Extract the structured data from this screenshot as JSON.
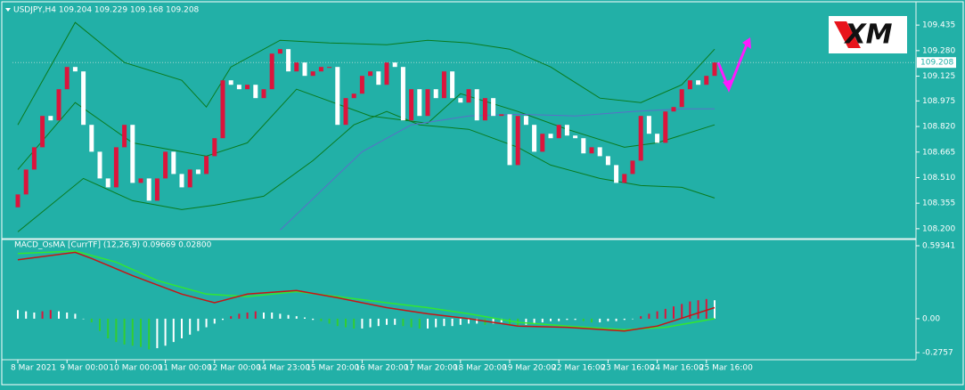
{
  "chart_data": {
    "type": "candlestick",
    "title": "USDJPY,H4  109.204 109.229 109.168 109.208",
    "logo": "XM",
    "ylim": [
      108.14,
      109.56
    ],
    "yticks": [
      109.435,
      {
        "value": 109.28,
        "label": "109.280"
      },
      109.125,
      108.975,
      {
        "value": 108.82,
        "label": "108.820"
      },
      108.665,
      {
        "value": 108.51,
        "label": "108.510"
      },
      108.355,
      {
        "value": 108.2,
        "label": "108.200"
      }
    ],
    "current_price": 109.208,
    "up_color": "#dc143c",
    "down_color": "#ffffff",
    "xticks": [
      {
        "value": 0,
        "label": "8 Mar 2021"
      },
      {
        "value": 6,
        "label": "9 Mar 00:00"
      },
      {
        "value": 12,
        "label": "10 Mar 00:00"
      },
      {
        "value": 18,
        "label": "11 Mar 00:00"
      },
      {
        "value": 24,
        "label": "12 Mar 00:00"
      },
      {
        "value": 30,
        "label": "14 Mar 23:00"
      },
      {
        "value": 36,
        "label": "15 Mar 20:00"
      },
      {
        "value": 42,
        "label": "16 Mar 20:00"
      },
      {
        "value": 48,
        "label": "17 Mar 20:00"
      },
      {
        "value": 54,
        "label": "18 Mar 20:00"
      },
      {
        "value": 60,
        "label": "19 Mar 20:00"
      },
      {
        "value": 66,
        "label": "22 Mar 16:00"
      },
      {
        "value": 72,
        "label": "23 Mar 16:00"
      },
      {
        "value": 78,
        "label": "24 Mar 16:00"
      },
      {
        "value": 84,
        "label": "25 Mar 16:00"
      }
    ],
    "candles": {
      "open": [
        108.33,
        108.408,
        108.559,
        108.694,
        108.884,
        108.857,
        109.046,
        109.181,
        109.154,
        108.83,
        108.667,
        108.505,
        108.451,
        108.694,
        108.83,
        108.478,
        108.505,
        108.37,
        108.505,
        108.667,
        108.532,
        108.451,
        108.559,
        108.532,
        108.64,
        108.749,
        109.1,
        109.073,
        109.046,
        109.073,
        108.992,
        109.046,
        109.262,
        109.289,
        109.154,
        109.208,
        109.127,
        109.154,
        109.181,
        109.181,
        108.83,
        108.992,
        109.019,
        109.127,
        109.154,
        109.073,
        109.208,
        109.181,
        108.857,
        109.046,
        108.884,
        109.046,
        108.992,
        109.154,
        108.992,
        108.965,
        109.046,
        108.857,
        108.992,
        108.884,
        108.894,
        108.586,
        108.884,
        108.83,
        108.667,
        108.776,
        108.749,
        108.83,
        108.765,
        108.749,
        108.657,
        108.694,
        108.64,
        108.586,
        108.478,
        108.532,
        108.613,
        108.884,
        108.776,
        108.721,
        108.911,
        108.938,
        109.046,
        109.1,
        109.073,
        109.127
      ],
      "close": [
        108.408,
        108.559,
        108.694,
        108.884,
        108.857,
        109.046,
        109.181,
        109.154,
        108.83,
        108.667,
        108.505,
        108.451,
        108.694,
        108.83,
        108.478,
        108.505,
        108.37,
        108.505,
        108.667,
        108.532,
        108.451,
        108.559,
        108.532,
        108.64,
        108.749,
        109.1,
        109.073,
        109.046,
        109.073,
        108.992,
        109.046,
        109.262,
        109.289,
        109.154,
        109.208,
        109.127,
        109.154,
        109.181,
        109.181,
        108.83,
        108.992,
        109.019,
        109.127,
        109.154,
        109.073,
        109.208,
        109.181,
        108.857,
        109.046,
        108.884,
        109.046,
        108.992,
        109.154,
        108.992,
        108.965,
        109.046,
        108.857,
        108.992,
        108.884,
        108.894,
        108.586,
        108.884,
        108.83,
        108.667,
        108.776,
        108.749,
        108.83,
        108.765,
        108.749,
        108.657,
        108.694,
        108.64,
        108.586,
        108.478,
        108.532,
        108.613,
        108.884,
        108.776,
        108.721,
        108.911,
        108.938,
        109.046,
        109.1,
        109.073,
        109.127,
        109.208
      ]
    },
    "indicators": [
      {
        "color": "#0a7a1e",
        "index": [
          0,
          7,
          13,
          20,
          23,
          26,
          32,
          38,
          45,
          50,
          55,
          60,
          65,
          71,
          76,
          81,
          85
        ],
        "values": [
          108.83,
          109.451,
          109.208,
          109.1,
          108.938,
          109.181,
          109.343,
          109.327,
          109.316,
          109.343,
          109.327,
          109.289,
          109.181,
          108.992,
          108.965,
          109.073,
          109.289
        ]
      },
      {
        "color": "#0a7a1e",
        "index": [
          0,
          7,
          14,
          23,
          28,
          34,
          43,
          50,
          54,
          61,
          67,
          74,
          78,
          85
        ],
        "values": [
          108.559,
          108.965,
          108.721,
          108.64,
          108.721,
          109.046,
          108.884,
          108.84,
          109.019,
          108.911,
          108.803,
          108.694,
          108.721,
          108.83
        ]
      },
      {
        "color": "#0a7a1e",
        "index": [
          0,
          8,
          14,
          20,
          24,
          30,
          36,
          41,
          45,
          49,
          55,
          61,
          65,
          71,
          76,
          81,
          85
        ],
        "values": [
          108.181,
          108.505,
          108.37,
          108.316,
          108.343,
          108.397,
          108.613,
          108.83,
          108.911,
          108.83,
          108.803,
          108.694,
          108.586,
          108.505,
          108.462,
          108.451,
          108.386
        ]
      },
      {
        "color": "#5a6fc8",
        "index": [
          32,
          42,
          48,
          55,
          61,
          68,
          75,
          81,
          85
        ],
        "values": [
          108.192,
          108.667,
          108.83,
          108.884,
          108.894,
          108.884,
          108.911,
          108.927,
          108.927
        ]
      }
    ],
    "macd": {
      "title": "MACD_OsMA [CurrTF] (12,26,9) 0.09669 0.02800",
      "ylim": [
        -0.334,
        0.637
      ],
      "yticks": [
        0.59341,
        {
          "value": 0,
          "label": "0.00"
        },
        -0.2757
      ],
      "grow_up_color": "#dc143c",
      "grow_down_color": "#32cd32",
      "shrink_color": "#ffffff",
      "histogram": [
        0.07,
        0.06,
        0.05,
        0.06,
        0.07,
        0.06,
        0.05,
        0.04,
        0.0,
        -0.03,
        -0.1,
        -0.16,
        -0.19,
        -0.21,
        -0.22,
        -0.23,
        -0.25,
        -0.24,
        -0.22,
        -0.19,
        -0.16,
        -0.13,
        -0.1,
        -0.07,
        -0.04,
        -0.01,
        0.02,
        0.04,
        0.05,
        0.06,
        0.05,
        0.05,
        0.04,
        0.03,
        0.02,
        0.01,
        -0.01,
        -0.02,
        -0.04,
        -0.06,
        -0.07,
        -0.08,
        -0.08,
        -0.07,
        -0.06,
        -0.05,
        -0.05,
        -0.06,
        -0.07,
        -0.08,
        -0.08,
        -0.07,
        -0.06,
        -0.06,
        -0.05,
        -0.04,
        -0.04,
        -0.05,
        -0.04,
        -0.03,
        -0.05,
        -0.06,
        -0.05,
        -0.04,
        -0.03,
        -0.02,
        -0.02,
        -0.01,
        -0.01,
        -0.02,
        -0.03,
        -0.03,
        -0.02,
        -0.02,
        -0.01,
        0.0,
        0.02,
        0.04,
        0.06,
        0.08,
        0.1,
        0.12,
        0.14,
        0.15,
        0.16,
        0.15
      ],
      "lines": [
        {
          "color": "#32e632",
          "index": [
            0,
            7,
            12,
            17,
            23,
            28,
            34,
            39,
            45,
            50,
            55,
            61,
            67,
            74,
            79,
            85
          ],
          "values": [
            0.53,
            0.55,
            0.46,
            0.31,
            0.2,
            0.18,
            0.22,
            0.18,
            0.13,
            0.09,
            0.04,
            -0.03,
            -0.06,
            -0.09,
            -0.07,
            0.0
          ]
        },
        {
          "color": "#c81414",
          "index": [
            0,
            7,
            9,
            14,
            20,
            24,
            28,
            34,
            39,
            45,
            50,
            55,
            61,
            67,
            74,
            78,
            85
          ],
          "values": [
            0.48,
            0.54,
            0.49,
            0.35,
            0.2,
            0.13,
            0.2,
            0.23,
            0.17,
            0.09,
            0.04,
            0.0,
            -0.06,
            -0.07,
            -0.1,
            -0.06,
            0.09
          ]
        }
      ]
    }
  }
}
